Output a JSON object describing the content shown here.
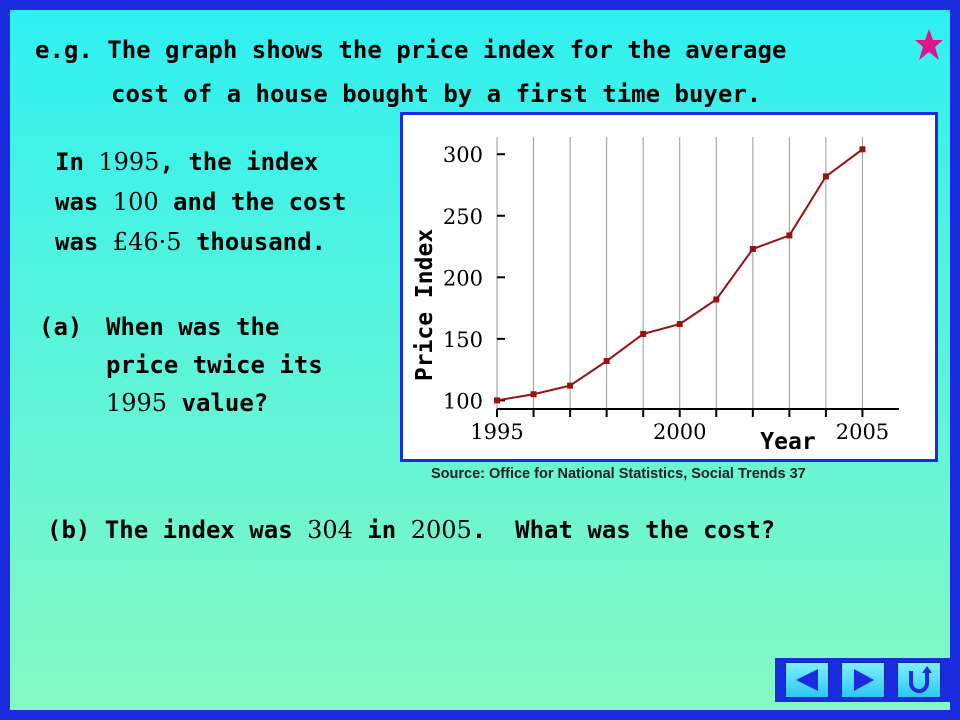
{
  "intro": {
    "line1": "e.g. The graph shows the price index for the average",
    "line2": "cost of a house bought by a first time buyer."
  },
  "info": {
    "l1a": "In ",
    "l1b": "1995",
    "l1c": ", the index",
    "l2a": "was ",
    "l2b": "100",
    "l2c": " and the cost",
    "l3a": "was ",
    "l3b": "£46·5",
    "l3c": " thousand."
  },
  "question_a": {
    "label": "(a)",
    "l1": "When was the",
    "l2": "price twice its",
    "l3a": "1995",
    "l3b": " value?"
  },
  "question_b": {
    "a": "(b) The index was ",
    "b": "304",
    "c": " in ",
    "d": "2005",
    "e": ".  What was the cost?"
  },
  "source": "Source: Office for National Statistics, Social Trends 37",
  "colors": {
    "line": "#9b1111",
    "frame": "#1b2be0",
    "accent_star": "#e0138f"
  },
  "chart_data": {
    "type": "line",
    "xlabel": "Year",
    "ylabel": "Price Index",
    "x_tick_labels": [
      "1995",
      "2000",
      "2005"
    ],
    "y_tick_labels": [
      "100",
      "150",
      "200",
      "250",
      "300"
    ],
    "xlim": [
      1995,
      2006
    ],
    "ylim": [
      93,
      314
    ],
    "grid": "vertical",
    "series": [
      {
        "x": [
          1995,
          1996,
          1997,
          1998,
          1999,
          2000,
          2001,
          2002,
          2003,
          2004,
          2005
        ],
        "values": [
          100,
          105,
          112,
          132,
          154,
          162,
          182,
          223,
          234,
          282,
          304
        ]
      }
    ]
  },
  "nav": {
    "back_icon": "left-triangle",
    "forward_icon": "right-triangle",
    "return_icon": "u-turn"
  }
}
